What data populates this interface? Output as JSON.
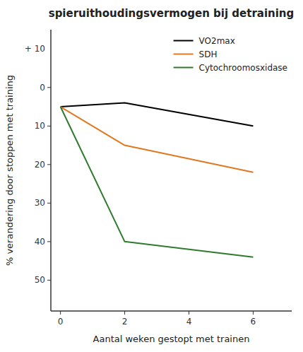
{
  "chart_data": {
    "type": "line",
    "title": "spieruithoudingsvermogen bij detraining",
    "x_label": "Aantal weken gestopt met trainen",
    "y_label": "% verandering door stoppen met training",
    "x": [
      0,
      2,
      6
    ],
    "series": [
      {
        "name": "VO2max",
        "color": "#000000",
        "values": [
          5,
          4,
          10
        ]
      },
      {
        "name": "SDH",
        "color": "#E07820",
        "values": [
          5,
          15,
          22
        ]
      },
      {
        "name": "Cytochroomosxidase",
        "color": "#2E7B2E",
        "values": [
          5,
          40,
          44
        ]
      }
    ],
    "xlim": [
      -0.3,
      7.2
    ],
    "ylim": [
      58,
      -15
    ],
    "xticks": [
      0,
      2,
      4,
      6
    ],
    "yticks": [
      0,
      10,
      20,
      30,
      40,
      50
    ],
    "annotations": [
      {
        "text": "+ 10",
        "y": -10
      }
    ],
    "legend": "upper right",
    "grid": false
  }
}
